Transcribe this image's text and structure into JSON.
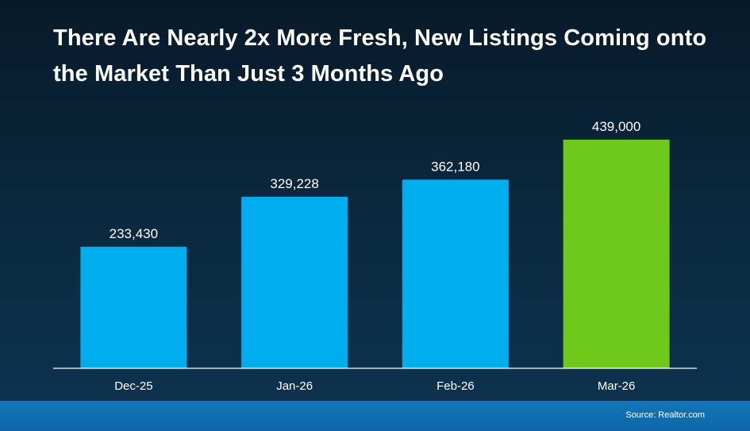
{
  "chart_data": {
    "type": "bar",
    "title": "There Are Nearly 2x More Fresh, New Listings Coming onto the Market Than Just 3 Months Ago",
    "categories": [
      "Dec-25",
      "Jan-26",
      "Feb-26",
      "Mar-26"
    ],
    "values": [
      233430,
      329228,
      362180,
      439000
    ],
    "value_labels": [
      "233,430",
      "329,228",
      "362,180",
      "439,000"
    ],
    "colors": [
      "#00adef",
      "#00adef",
      "#00adef",
      "#6ec91c"
    ],
    "xlabel": "",
    "ylabel": "",
    "ylim": [
      0,
      480000
    ],
    "grid": false,
    "legend": "none"
  },
  "footer": {
    "source": "Source: Realtor.com"
  }
}
